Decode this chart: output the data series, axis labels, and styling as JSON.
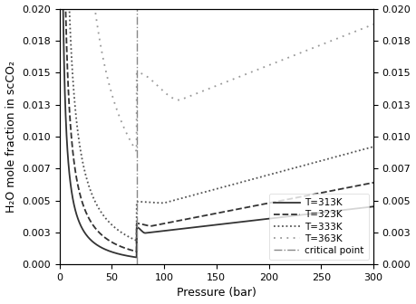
{
  "title": "",
  "xlabel": "Pressure (bar)",
  "ylabel": "H₂O mole fraction in scCO₂",
  "xlim": [
    0,
    300
  ],
  "ylim": [
    0,
    0.02
  ],
  "critical_pressure": 73.8,
  "legend_labels": [
    "T=313K",
    "T=323K",
    "T=333K",
    "T=363K",
    "critical point"
  ],
  "colors": [
    "#333333",
    "#333333",
    "#555555",
    "#999999"
  ],
  "linestyles": [
    "-",
    "--",
    ":",
    ":"
  ],
  "critical_line_color": "#888888",
  "background_color": "#ffffff",
  "curve_313": {
    "sub_Psat": 0.0726,
    "sub_exp": -0.008,
    "super_y0": 0.0029,
    "super_min_P": 82,
    "super_min_y": 0.00245,
    "super_growth": 9.5e-06
  },
  "curve_323": {
    "sub_Psat": 0.1233,
    "sub_exp": -0.007,
    "super_y0": 0.0032,
    "super_min_P": 88,
    "super_min_y": 0.003,
    "super_growth": 1.6e-05
  },
  "curve_333": {
    "sub_Psat": 0.1985,
    "sub_exp": -0.005,
    "super_y0": 0.0049,
    "super_min_P": 100,
    "super_min_y": 0.0048,
    "super_growth": 2.2e-05
  },
  "curve_363": {
    "sub_Psat": 0.701,
    "sub_exp": -0.001,
    "super_y0": 0.015,
    "super_min_P": 115,
    "super_min_y": 0.01285,
    "super_growth": 3.2e-05
  }
}
